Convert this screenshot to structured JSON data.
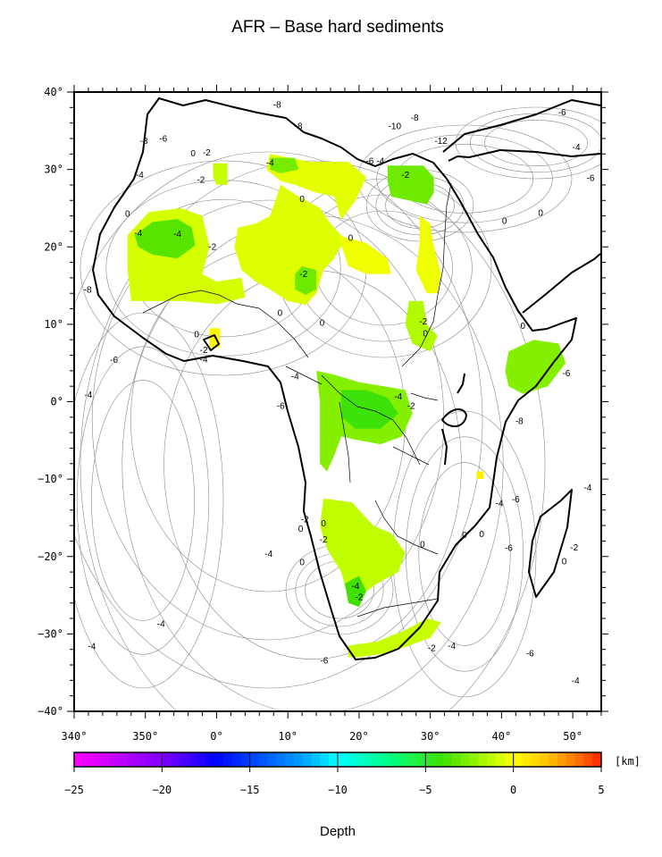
{
  "map": {
    "title": "AFR – Base hard sediments",
    "projection": "geographic",
    "lon_range": [
      -20,
      54
    ],
    "lat_range": [
      -40,
      40
    ],
    "lon_ticks": [
      {
        "lon": -20,
        "label": "340°"
      },
      {
        "lon": -10,
        "label": "350°"
      },
      {
        "lon": 0,
        "label": "0°"
      },
      {
        "lon": 10,
        "label": "10°"
      },
      {
        "lon": 20,
        "label": "20°"
      },
      {
        "lon": 30,
        "label": "30°"
      },
      {
        "lon": 40,
        "label": "40°"
      },
      {
        "lon": 50,
        "label": "50°"
      }
    ],
    "lat_ticks": [
      {
        "lat": 40,
        "label": "40°"
      },
      {
        "lat": 30,
        "label": "30°"
      },
      {
        "lat": 20,
        "label": "20°"
      },
      {
        "lat": 10,
        "label": "10°"
      },
      {
        "lat": 0,
        "label": "0°"
      },
      {
        "lat": -10,
        "label": "−10°"
      },
      {
        "lat": -20,
        "label": "−20°"
      },
      {
        "lat": -30,
        "label": "−30°"
      },
      {
        "lat": -40,
        "label": "−40°"
      }
    ],
    "contour_labels": [
      {
        "lon": -10.2,
        "lat": 33.3,
        "text": "-8"
      },
      {
        "lon": -7.5,
        "lat": 33.6,
        "text": "-6"
      },
      {
        "lon": -3.3,
        "lat": 31.7,
        "text": "0"
      },
      {
        "lon": -1.4,
        "lat": 31.8,
        "text": "-2"
      },
      {
        "lon": -10.8,
        "lat": 28.9,
        "text": "-4"
      },
      {
        "lon": -2.2,
        "lat": 28.3,
        "text": "-2"
      },
      {
        "lon": 8.5,
        "lat": 38.0,
        "text": "-8"
      },
      {
        "lon": 11.5,
        "lat": 35.2,
        "text": "-8"
      },
      {
        "lon": 7.5,
        "lat": 30.5,
        "text": "-4"
      },
      {
        "lon": 21.5,
        "lat": 30.7,
        "text": "-6"
      },
      {
        "lon": 23.0,
        "lat": 30.7,
        "text": "-4"
      },
      {
        "lon": 26.5,
        "lat": 28.9,
        "text": "-2"
      },
      {
        "lon": 27.8,
        "lat": 36.3,
        "text": "-8"
      },
      {
        "lon": 25.0,
        "lat": 35.2,
        "text": "-10"
      },
      {
        "lon": 31.5,
        "lat": 33.3,
        "text": "-12"
      },
      {
        "lon": 48.5,
        "lat": 37.0,
        "text": "-6"
      },
      {
        "lon": 50.5,
        "lat": 32.5,
        "text": "-4"
      },
      {
        "lon": 52.5,
        "lat": 28.5,
        "text": "-6"
      },
      {
        "lon": -12.5,
        "lat": 23.9,
        "text": "0"
      },
      {
        "lon": -11.0,
        "lat": 21.4,
        "text": "-4"
      },
      {
        "lon": -5.5,
        "lat": 21.3,
        "text": "-4"
      },
      {
        "lon": -0.6,
        "lat": 19.6,
        "text": "-2"
      },
      {
        "lon": 12.0,
        "lat": 25.8,
        "text": "0"
      },
      {
        "lon": 18.8,
        "lat": 20.8,
        "text": "0"
      },
      {
        "lon": 12.2,
        "lat": 16.1,
        "text": "-2"
      },
      {
        "lon": 8.9,
        "lat": 11.1,
        "text": "0"
      },
      {
        "lon": 14.8,
        "lat": 9.8,
        "text": "0"
      },
      {
        "lon": 29.0,
        "lat": 10.0,
        "text": "-2"
      },
      {
        "lon": 29.3,
        "lat": 8.4,
        "text": "0"
      },
      {
        "lon": 40.4,
        "lat": 23.0,
        "text": "0"
      },
      {
        "lon": 45.5,
        "lat": 24.0,
        "text": "0"
      },
      {
        "lon": 43.0,
        "lat": 9.4,
        "text": "0"
      },
      {
        "lon": -18.1,
        "lat": 14.1,
        "text": "-8"
      },
      {
        "lon": -2.8,
        "lat": 8.3,
        "text": "0"
      },
      {
        "lon": -1.8,
        "lat": 6.3,
        "text": "-2"
      },
      {
        "lon": -1.8,
        "lat": 5.1,
        "text": "-4"
      },
      {
        "lon": -14.4,
        "lat": 5.0,
        "text": "-6"
      },
      {
        "lon": -18.0,
        "lat": 0.5,
        "text": "-4"
      },
      {
        "lon": 9.0,
        "lat": -0.9,
        "text": "-6"
      },
      {
        "lon": 11.0,
        "lat": 2.9,
        "text": "-4"
      },
      {
        "lon": 25.5,
        "lat": 0.3,
        "text": "-4"
      },
      {
        "lon": 27.3,
        "lat": -0.9,
        "text": "-2"
      },
      {
        "lon": 49.1,
        "lat": 3.3,
        "text": "-6"
      },
      {
        "lon": 42.5,
        "lat": -2.9,
        "text": "-8"
      },
      {
        "lon": 39.7,
        "lat": -13.5,
        "text": "-4"
      },
      {
        "lon": 42.0,
        "lat": -13.0,
        "text": "-6"
      },
      {
        "lon": 52.1,
        "lat": -11.5,
        "text": "-4"
      },
      {
        "lon": 50.2,
        "lat": -19.2,
        "text": "-2"
      },
      {
        "lon": 48.8,
        "lat": -21.0,
        "text": "0"
      },
      {
        "lon": 41.0,
        "lat": -19.3,
        "text": "-6"
      },
      {
        "lon": 37.2,
        "lat": -17.5,
        "text": "0"
      },
      {
        "lon": 12.4,
        "lat": -15.6,
        "text": "-2"
      },
      {
        "lon": 11.8,
        "lat": -16.8,
        "text": "0"
      },
      {
        "lon": 15.0,
        "lat": -16.1,
        "text": "0"
      },
      {
        "lon": 15.0,
        "lat": -18.2,
        "text": "-2"
      },
      {
        "lon": 12.0,
        "lat": -21.1,
        "text": "0"
      },
      {
        "lon": 7.3,
        "lat": -20.0,
        "text": "-4"
      },
      {
        "lon": 19.5,
        "lat": -24.2,
        "text": "-4"
      },
      {
        "lon": 20.0,
        "lat": -25.6,
        "text": "-2"
      },
      {
        "lon": 28.9,
        "lat": -18.8,
        "text": "0"
      },
      {
        "lon": 34.8,
        "lat": -17.6,
        "text": "0"
      },
      {
        "lon": -17.5,
        "lat": -32.0,
        "text": "-4"
      },
      {
        "lon": -7.8,
        "lat": -29.1,
        "text": "-4"
      },
      {
        "lon": 15.1,
        "lat": -33.8,
        "text": "-6"
      },
      {
        "lon": 30.2,
        "lat": -32.2,
        "text": "-2"
      },
      {
        "lon": 33.0,
        "lat": -31.9,
        "text": "-4"
      },
      {
        "lon": 44.0,
        "lat": -32.9,
        "text": "-6"
      },
      {
        "lon": 50.4,
        "lat": -36.4,
        "text": "-4"
      }
    ]
  },
  "colorbar": {
    "range": [
      -25,
      5
    ],
    "ticks": [
      -25,
      -20,
      -15,
      -10,
      -5,
      0,
      5
    ],
    "tick_labels": [
      "−25",
      "−20",
      "−15",
      "−10",
      "−5",
      "0",
      "5"
    ],
    "unit": "[km]",
    "label": "Depth",
    "stops": [
      {
        "v": -25,
        "color": "#ff00ff"
      },
      {
        "v": -20,
        "color": "#8000ff"
      },
      {
        "v": -17,
        "color": "#0000ff"
      },
      {
        "v": -12,
        "color": "#00a0ff"
      },
      {
        "v": -10,
        "color": "#00ffff"
      },
      {
        "v": -7,
        "color": "#00ff80"
      },
      {
        "v": -4,
        "color": "#40e000"
      },
      {
        "v": -1,
        "color": "#c8ff00"
      },
      {
        "v": 0,
        "color": "#ffff00"
      },
      {
        "v": 2,
        "color": "#ffc000"
      },
      {
        "v": 4,
        "color": "#ff6000"
      },
      {
        "v": 5,
        "color": "#ff2000"
      }
    ]
  },
  "sediment_regions": [
    {
      "name": "west-africa-sahel",
      "depth": -0.8,
      "pts": [
        [
          -12.5,
          21.5
        ],
        [
          -9.5,
          24.5
        ],
        [
          -5.0,
          25.0
        ],
        [
          -2.0,
          24.0
        ],
        [
          -1.0,
          20.0
        ],
        [
          -2.0,
          16.5
        ],
        [
          0.0,
          15.5
        ],
        [
          3.5,
          16.0
        ],
        [
          4.0,
          13.5
        ],
        [
          0.0,
          12.6
        ],
        [
          -4.5,
          13.0
        ],
        [
          -9.0,
          13.0
        ],
        [
          -12.0,
          13.0
        ],
        [
          -12.5,
          17.0
        ]
      ]
    },
    {
      "name": "taoudeni-core",
      "depth": -3.5,
      "pts": [
        [
          -11.5,
          21.5
        ],
        [
          -9.0,
          23.2
        ],
        [
          -5.5,
          23.6
        ],
        [
          -3.5,
          22.5
        ],
        [
          -3.0,
          20.2
        ],
        [
          -5.5,
          18.5
        ],
        [
          -9.0,
          19.0
        ],
        [
          -11.0,
          20.0
        ]
      ]
    },
    {
      "name": "algeria-north",
      "depth": -1.0,
      "pts": [
        [
          -0.5,
          30.8
        ],
        [
          1.5,
          30.8
        ],
        [
          1.5,
          28.0
        ],
        [
          0.0,
          28.0
        ],
        [
          -0.5,
          29.0
        ]
      ]
    },
    {
      "name": "hoggar-east",
      "depth": -0.5,
      "pts": [
        [
          7.5,
          32.0
        ],
        [
          13.0,
          31.0
        ],
        [
          18.5,
          31.0
        ],
        [
          21.0,
          29.0
        ],
        [
          19.5,
          26.0
        ],
        [
          17.5,
          23.5
        ],
        [
          16.5,
          26.5
        ],
        [
          14.0,
          27.0
        ],
        [
          11.0,
          28.0
        ],
        [
          9.0,
          28.5
        ],
        [
          7.0,
          30.0
        ]
      ]
    },
    {
      "name": "ghadames",
      "depth": -2.8,
      "pts": [
        [
          7.5,
          31.5
        ],
        [
          11.0,
          31.5
        ],
        [
          11.5,
          30.0
        ],
        [
          9.0,
          29.5
        ],
        [
          7.5,
          30.0
        ]
      ]
    },
    {
      "name": "chad-basin",
      "depth": -0.6,
      "pts": [
        [
          9.0,
          28.0
        ],
        [
          11.5,
          26.5
        ],
        [
          14.5,
          25.0
        ],
        [
          16.0,
          23.0
        ],
        [
          18.0,
          21.0
        ],
        [
          16.5,
          18.5
        ],
        [
          15.0,
          17.0
        ],
        [
          14.0,
          14.0
        ],
        [
          12.5,
          12.5
        ],
        [
          10.0,
          13.0
        ],
        [
          7.5,
          14.5
        ],
        [
          5.5,
          15.5
        ],
        [
          3.5,
          17.0
        ],
        [
          2.5,
          20.0
        ],
        [
          3.0,
          22.5
        ],
        [
          5.5,
          23.0
        ],
        [
          7.5,
          24.0
        ]
      ]
    },
    {
      "name": "chad-core",
      "depth": -3.0,
      "pts": [
        [
          12.0,
          17.5
        ],
        [
          14.0,
          17.0
        ],
        [
          14.0,
          14.5
        ],
        [
          12.5,
          13.8
        ],
        [
          11.0,
          14.5
        ],
        [
          11.0,
          16.5
        ]
      ]
    },
    {
      "name": "kufra",
      "depth": -0.3,
      "pts": [
        [
          17.0,
          21.5
        ],
        [
          21.0,
          20.5
        ],
        [
          24.0,
          18.5
        ],
        [
          24.5,
          16.5
        ],
        [
          21.0,
          16.5
        ],
        [
          18.5,
          17.5
        ]
      ]
    },
    {
      "name": "egypt-north",
      "depth": -3.0,
      "pts": [
        [
          24.0,
          30.5
        ],
        [
          29.0,
          30.5
        ],
        [
          30.5,
          29.0
        ],
        [
          30.5,
          27.0
        ],
        [
          29.5,
          25.5
        ],
        [
          27.0,
          26.0
        ],
        [
          24.5,
          26.5
        ],
        [
          24.0,
          28.5
        ]
      ]
    },
    {
      "name": "sudan",
      "depth": -0.3,
      "pts": [
        [
          28.5,
          24.0
        ],
        [
          30.0,
          23.0
        ],
        [
          30.5,
          20.0
        ],
        [
          31.5,
          16.5
        ],
        [
          31.0,
          14.0
        ],
        [
          29.5,
          14.0
        ],
        [
          28.0,
          17.0
        ],
        [
          28.5,
          20.5
        ]
      ]
    },
    {
      "name": "sudd",
      "depth": -1.5,
      "pts": [
        [
          27.0,
          13.0
        ],
        [
          29.0,
          13.0
        ],
        [
          29.5,
          10.0
        ],
        [
          31.0,
          8.5
        ],
        [
          30.0,
          6.5
        ],
        [
          27.5,
          7.5
        ],
        [
          26.5,
          10.0
        ]
      ]
    },
    {
      "name": "ogaden",
      "depth": -2.5,
      "pts": [
        [
          41.0,
          6.5
        ],
        [
          44.5,
          8.0
        ],
        [
          48.0,
          7.5
        ],
        [
          49.0,
          5.0
        ],
        [
          46.5,
          2.0
        ],
        [
          43.0,
          1.0
        ],
        [
          41.0,
          2.0
        ],
        [
          40.5,
          4.0
        ]
      ]
    },
    {
      "name": "congo-basin",
      "depth": -2.5,
      "pts": [
        [
          14.0,
          4.0
        ],
        [
          16.5,
          3.5
        ],
        [
          20.0,
          2.5
        ],
        [
          23.5,
          2.0
        ],
        [
          26.5,
          1.5
        ],
        [
          27.5,
          -1.5
        ],
        [
          26.0,
          -4.5
        ],
        [
          23.0,
          -5.5
        ],
        [
          20.0,
          -5.0
        ],
        [
          17.5,
          -4.5
        ],
        [
          16.5,
          -7.0
        ],
        [
          15.5,
          -9.0
        ],
        [
          14.5,
          -8.0
        ],
        [
          14.5,
          -4.0
        ],
        [
          14.5,
          0.0
        ]
      ]
    },
    {
      "name": "congo-core",
      "depth": -4.2,
      "pts": [
        [
          17.5,
          1.5
        ],
        [
          21.0,
          1.5
        ],
        [
          24.0,
          0.5
        ],
        [
          25.5,
          -1.5
        ],
        [
          23.0,
          -3.5
        ],
        [
          19.5,
          -3.5
        ],
        [
          17.5,
          -2.0
        ]
      ]
    },
    {
      "name": "kalahari",
      "depth": -1.2,
      "pts": [
        [
          15.0,
          -12.5
        ],
        [
          19.0,
          -13.0
        ],
        [
          22.0,
          -16.0
        ],
        [
          24.5,
          -17.0
        ],
        [
          26.5,
          -19.5
        ],
        [
          25.5,
          -22.0
        ],
        [
          22.5,
          -23.5
        ],
        [
          21.0,
          -24.5
        ],
        [
          18.5,
          -25.5
        ],
        [
          17.5,
          -22.0
        ],
        [
          15.5,
          -19.0
        ],
        [
          14.5,
          -16.0
        ]
      ]
    },
    {
      "name": "kalahari-core",
      "depth": -4.0,
      "pts": [
        [
          18.0,
          -23.5
        ],
        [
          20.0,
          -22.5
        ],
        [
          21.0,
          -24.5
        ],
        [
          20.0,
          -26.5
        ],
        [
          18.5,
          -26.0
        ]
      ]
    },
    {
      "name": "karoo",
      "depth": -1.0,
      "pts": [
        [
          18.5,
          -31.5
        ],
        [
          22.5,
          -31.0
        ],
        [
          26.5,
          -29.5
        ],
        [
          29.5,
          -28.0
        ],
        [
          31.5,
          -28.5
        ],
        [
          30.0,
          -30.5
        ],
        [
          27.0,
          -31.5
        ],
        [
          24.0,
          -32.5
        ],
        [
          20.0,
          -33.0
        ],
        [
          18.5,
          -33.0
        ]
      ]
    },
    {
      "name": "senegal-south",
      "depth": 0.3,
      "pts": [
        [
          -1.0,
          9.5
        ],
        [
          0.5,
          9.5
        ],
        [
          0.5,
          7.0
        ],
        [
          -1.0,
          7.0
        ]
      ]
    },
    {
      "name": "tiny-east",
      "depth": 0.5,
      "pts": [
        [
          36.5,
          -9.0
        ],
        [
          37.5,
          -9.0
        ],
        [
          37.5,
          -10.0
        ],
        [
          36.5,
          -10.0
        ]
      ]
    }
  ]
}
